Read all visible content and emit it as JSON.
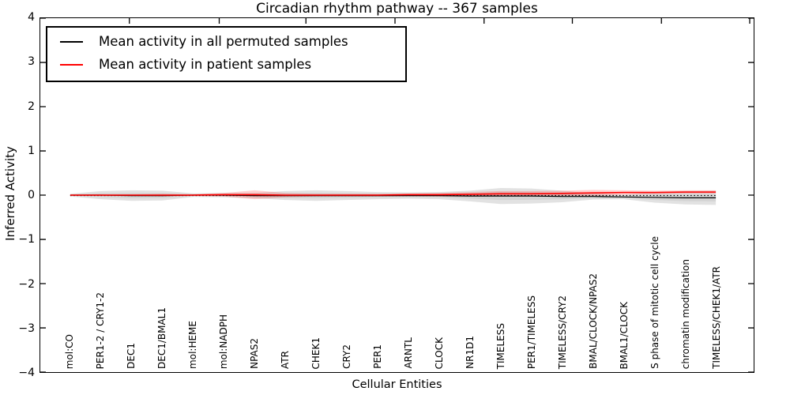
{
  "chart_data": {
    "type": "line",
    "title": "Circadian rhythm pathway -- 367 samples",
    "xlabel": "Cellular Entities",
    "ylabel": "Inferred Activity",
    "ylim": [
      -4,
      4
    ],
    "ytick_values": [
      4,
      3,
      2,
      1,
      0,
      -1,
      -2,
      -3,
      -4
    ],
    "ytick_labels": [
      "4",
      "3",
      "2",
      "1",
      "0",
      "−1",
      "−2",
      "−3",
      "−4"
    ],
    "grid": false,
    "legend_position": "upper left",
    "zero_line": {
      "style": "dotted",
      "value": 0,
      "color": "#000000"
    },
    "categories": [
      "mol:CO",
      "PER1-2 / CRY1-2",
      "DEC1",
      "DEC1/BMAL1",
      "mol:HEME",
      "mol:NADPH",
      "NPAS2",
      "ATR",
      "CHEK1",
      "CRY2",
      "PER1",
      "ARNTL",
      "CLOCK",
      "NR1D1",
      "TIMELESS",
      "PER1/TIMELESS",
      "TIMELESS/CRY2",
      "BMAL/CLOCK/NPAS2",
      "BMAL1/CLOCK",
      "S phase of mitotic cell cycle",
      "chromatin modification",
      "TIMELESS/CHEK1/ATR"
    ],
    "series": [
      {
        "name": "Mean activity in all permuted samples",
        "color": "#000000",
        "values": [
          0.0,
          0.0,
          -0.01,
          -0.01,
          0.0,
          0.0,
          -0.01,
          -0.01,
          -0.01,
          -0.01,
          -0.01,
          -0.01,
          -0.01,
          -0.02,
          -0.02,
          -0.02,
          -0.03,
          -0.03,
          -0.04,
          -0.05,
          -0.06,
          -0.06
        ],
        "band": [
          0.03,
          0.09,
          0.12,
          0.11,
          0.04,
          0.05,
          0.06,
          0.1,
          0.12,
          0.1,
          0.08,
          0.07,
          0.08,
          0.12,
          0.18,
          0.17,
          0.13,
          0.07,
          0.05,
          0.12,
          0.15,
          0.16
        ]
      },
      {
        "name": "Mean activity in patient samples",
        "color": "#ff0000",
        "values": [
          0.0,
          0.0,
          0.0,
          0.0,
          0.0,
          0.01,
          0.01,
          0.0,
          0.0,
          0.0,
          0.0,
          0.01,
          0.01,
          0.02,
          0.03,
          0.03,
          0.04,
          0.05,
          0.06,
          0.06,
          0.07,
          0.07
        ],
        "band": [
          0.01,
          0.02,
          0.02,
          0.03,
          0.02,
          0.04,
          0.1,
          0.05,
          0.03,
          0.03,
          0.03,
          0.03,
          0.04,
          0.05,
          0.06,
          0.06,
          0.06,
          0.07,
          0.05,
          0.04,
          0.04,
          0.04
        ]
      }
    ]
  }
}
